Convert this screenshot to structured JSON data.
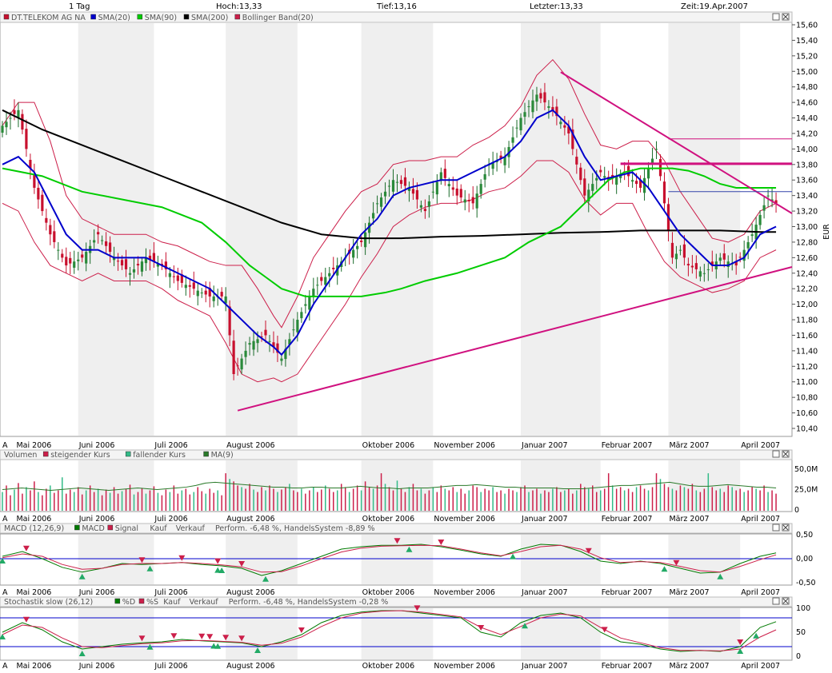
{
  "top_bar": {
    "interval": "1 Tag",
    "high": "Hoch:13,33",
    "low": "Tief:13,16",
    "last": "Letzter:13,33",
    "time": "Zeit:19.Apr.2007"
  },
  "colors": {
    "up_candle": "#c8102e",
    "sma20": "#0000cc",
    "sma90": "#00cc00",
    "sma200": "#000000",
    "bollinger": "#cc1f4a",
    "trendline": "#d0117f",
    "vol_up": "#cc1f4a",
    "vol_down": "#33bb88",
    "macd": "#007a00",
    "signal": "#cc1f4a",
    "buy_marker": "#22aa66",
    "sell_marker": "#cc1f4a",
    "band_shade": "#efefef",
    "grid": "#d8d8d8"
  },
  "chart_data": [
    {
      "type": "line",
      "title": "DT.TELEKOM AG NA",
      "legend": [
        "DT.TELEKOM AG NA",
        "SMA(20)",
        "SMA(90)",
        "SMA(200)",
        "Bollinger Band(20)"
      ],
      "ylabel": "EUR",
      "ylim": [
        10.3,
        15.7
      ],
      "yticks": [
        "15,60",
        "15,40",
        "15,20",
        "15,00",
        "14,80",
        "14,60",
        "14,40",
        "14,20",
        "14,00",
        "13,80",
        "13,60",
        "13,40",
        "13,20",
        "13,00",
        "12,80",
        "12,60",
        "12,40",
        "12,20",
        "12,00",
        "11,80",
        "11,60",
        "11,40",
        "11,20",
        "11,00",
        "10,80",
        "10,60",
        "10,40"
      ],
      "month_labels": [
        "Mai 2006",
        "Juni 2006",
        "Juli 2006",
        "August 2006",
        "Oktober 2006",
        "November 2006",
        "Januar 2007",
        "Februar 2007",
        "März 2007",
        "April 2007"
      ],
      "month_starts": [
        0.5,
        19,
        38,
        56,
        90,
        108,
        130,
        150,
        167,
        185
      ],
      "shaded_months": [
        [
          19,
          38
        ],
        [
          56,
          74
        ],
        [
          90,
          108
        ],
        [
          130,
          150
        ],
        [
          167,
          185
        ]
      ],
      "series": [
        {
          "name": "DT.TELEKOM AG NA",
          "x": [
            0,
            4,
            8,
            12,
            16,
            20,
            24,
            28,
            32,
            36,
            40,
            44,
            48,
            52,
            56,
            58,
            62,
            66,
            70,
            74,
            78,
            82,
            86,
            90,
            94,
            98,
            102,
            106,
            110,
            114,
            118,
            122,
            126,
            130,
            134,
            138,
            142,
            146,
            150,
            152,
            156,
            160,
            164,
            166,
            168,
            170,
            172,
            176,
            180,
            184,
            188,
            192,
            194
          ],
          "values": [
            14.3,
            14.5,
            13.5,
            12.9,
            12.5,
            12.6,
            12.9,
            12.6,
            12.4,
            12.6,
            12.5,
            12.3,
            12.2,
            12.1,
            12.1,
            11.1,
            11.5,
            11.6,
            11.3,
            11.8,
            12.2,
            12.4,
            12.6,
            12.8,
            13.3,
            13.6,
            13.5,
            13.2,
            13.7,
            13.4,
            13.3,
            13.8,
            13.9,
            14.4,
            14.7,
            14.5,
            14.2,
            13.4,
            13.7,
            13.6,
            13.7,
            13.5,
            14.0,
            13.3,
            12.6,
            12.7,
            12.5,
            12.4,
            12.6,
            12.5,
            12.9,
            13.4,
            13.3
          ]
        },
        {
          "name": "SMA(20)",
          "x": [
            0,
            4,
            8,
            12,
            16,
            20,
            24,
            28,
            32,
            36,
            40,
            44,
            48,
            52,
            56,
            60,
            64,
            68,
            70,
            74,
            78,
            82,
            86,
            90,
            94,
            98,
            102,
            106,
            110,
            114,
            118,
            122,
            126,
            130,
            134,
            138,
            142,
            146,
            150,
            154,
            158,
            162,
            166,
            170,
            174,
            178,
            182,
            186,
            190,
            194
          ],
          "values": [
            13.8,
            13.9,
            13.7,
            13.3,
            12.9,
            12.7,
            12.7,
            12.6,
            12.6,
            12.6,
            12.5,
            12.4,
            12.3,
            12.2,
            12.0,
            11.8,
            11.6,
            11.45,
            11.35,
            11.6,
            12.0,
            12.3,
            12.6,
            12.9,
            13.1,
            13.4,
            13.5,
            13.55,
            13.6,
            13.6,
            13.7,
            13.8,
            13.9,
            14.1,
            14.4,
            14.5,
            14.3,
            13.9,
            13.6,
            13.65,
            13.7,
            13.5,
            13.2,
            12.9,
            12.7,
            12.5,
            12.5,
            12.6,
            12.9,
            13.0
          ]
        },
        {
          "name": "SMA(90)",
          "x": [
            0,
            10,
            20,
            30,
            40,
            50,
            56,
            62,
            66,
            70,
            76,
            82,
            90,
            96,
            100,
            106,
            114,
            120,
            126,
            132,
            140,
            148,
            152,
            156,
            160,
            164,
            168,
            172,
            176,
            180,
            184,
            188,
            194
          ],
          "values": [
            13.75,
            13.65,
            13.45,
            13.35,
            13.25,
            13.05,
            12.8,
            12.5,
            12.35,
            12.2,
            12.1,
            12.1,
            12.1,
            12.15,
            12.2,
            12.3,
            12.4,
            12.5,
            12.6,
            12.8,
            13.0,
            13.4,
            13.6,
            13.7,
            13.75,
            13.75,
            13.75,
            13.72,
            13.65,
            13.55,
            13.5,
            13.5,
            13.5
          ]
        },
        {
          "name": "SMA(200)",
          "x": [
            0,
            10,
            20,
            30,
            40,
            50,
            60,
            70,
            80,
            90,
            100,
            110,
            120,
            130,
            140,
            150,
            160,
            170,
            180,
            190,
            194
          ],
          "values": [
            14.5,
            14.25,
            14.05,
            13.85,
            13.65,
            13.45,
            13.25,
            13.05,
            12.9,
            12.85,
            12.85,
            12.87,
            12.88,
            12.9,
            12.92,
            12.93,
            12.95,
            12.95,
            12.95,
            12.93,
            12.93
          ]
        }
      ],
      "annotations": [
        {
          "type": "trendline",
          "from": [
            59,
            10.63
          ],
          "to": [
            198,
            12.48
          ]
        },
        {
          "type": "trendline",
          "from": [
            140,
            14.99
          ],
          "to": [
            198,
            13.17
          ]
        },
        {
          "type": "hline",
          "x": [
            155,
            198
          ],
          "y": 13.81
        },
        {
          "type": "hline",
          "x": [
            167,
            198
          ],
          "y": 14.13
        },
        {
          "type": "hline",
          "x": [
            167,
            198
          ],
          "y": 13.45
        }
      ]
    },
    {
      "type": "bar",
      "title": "Volumen",
      "legend": [
        "Volumen",
        "steigender Kurs",
        "fallender Kurs",
        "MA(9)"
      ],
      "yticks": [
        "50,0M",
        "25,0M",
        "0"
      ],
      "ylim": [
        0,
        70
      ],
      "unit": "M",
      "values": [
        22,
        30,
        18,
        25,
        33,
        20,
        28,
        24,
        35,
        22,
        18,
        26,
        30,
        21,
        24,
        40,
        20,
        25,
        22,
        28,
        19,
        24,
        30,
        22,
        26,
        18,
        25,
        21,
        28,
        20,
        23,
        26,
        31,
        19,
        22,
        27,
        20,
        24,
        29,
        21,
        18,
        25,
        22,
        30,
        20,
        24,
        26,
        19,
        22,
        28,
        23,
        20,
        26,
        21,
        24,
        18,
        45,
        38,
        35,
        30,
        28,
        26,
        32,
        25,
        22,
        28,
        24,
        30,
        26,
        22,
        25,
        28,
        32,
        24,
        22,
        26,
        20,
        24,
        28,
        22,
        25,
        30,
        26,
        22,
        24,
        32,
        28,
        22,
        26,
        30,
        24,
        35,
        28,
        26,
        30,
        45,
        32,
        28,
        24,
        36,
        26,
        22,
        28,
        32,
        24,
        26,
        20,
        24,
        28,
        22,
        30,
        26,
        24,
        28,
        22,
        26,
        20,
        24,
        30,
        28,
        22,
        26,
        24,
        28,
        22,
        24,
        20,
        26,
        24,
        22,
        28,
        30,
        22,
        24,
        26,
        20,
        24,
        22,
        26,
        28,
        22,
        24,
        26,
        20,
        24,
        32,
        28,
        26,
        30,
        22,
        24,
        26,
        45,
        30,
        26,
        28,
        24,
        26,
        22,
        28,
        30,
        26,
        24,
        28,
        45,
        38,
        32,
        28,
        26,
        24,
        30,
        28,
        26,
        32,
        24,
        22,
        26,
        45,
        28,
        24,
        26,
        22,
        30,
        28,
        24,
        26,
        22,
        24,
        28,
        26,
        24,
        30,
        22,
        24,
        20
      ],
      "ma": [
        25,
        26,
        27,
        26,
        25,
        24,
        25,
        26,
        27,
        26,
        25,
        24,
        25,
        26,
        27,
        26,
        25,
        26,
        27,
        28,
        30,
        33,
        34,
        33,
        32,
        31,
        30,
        29,
        28,
        28,
        27,
        27,
        28,
        28,
        27,
        27,
        28,
        29,
        28,
        27,
        27,
        26,
        27,
        27,
        27,
        28,
        29,
        30,
        30,
        31,
        30,
        29,
        28,
        28,
        27,
        27,
        27,
        27,
        26,
        26,
        26,
        27,
        28,
        29,
        30,
        30,
        31,
        32,
        33,
        34,
        32,
        30,
        29,
        29,
        30,
        31,
        30,
        29,
        28,
        28,
        27
      ]
    },
    {
      "type": "line",
      "title": "MACD (12,26,9)",
      "legend": [
        "MACD (12,26,9)",
        "MACD",
        "Signal",
        "Kauf",
        "Verkauf",
        "Perform. -6,48 %, HandelsSystem -8,89 %"
      ],
      "yticks": [
        "0,50",
        "0,00",
        "-0,50"
      ],
      "ylim": [
        -0.6,
        0.6
      ],
      "x": [
        0,
        5,
        10,
        15,
        20,
        25,
        30,
        35,
        40,
        45,
        50,
        55,
        60,
        65,
        70,
        75,
        80,
        85,
        90,
        95,
        100,
        105,
        110,
        115,
        120,
        125,
        130,
        135,
        140,
        145,
        150,
        155,
        160,
        165,
        170,
        175,
        180,
        185,
        190,
        194
      ],
      "series": [
        {
          "name": "MACD",
          "values": [
            0.05,
            0.15,
            0.0,
            -0.18,
            -0.28,
            -0.2,
            -0.1,
            -0.12,
            -0.1,
            -0.08,
            -0.12,
            -0.15,
            -0.2,
            -0.35,
            -0.25,
            -0.1,
            0.05,
            0.2,
            0.25,
            0.28,
            0.28,
            0.3,
            0.25,
            0.18,
            0.1,
            0.05,
            0.2,
            0.3,
            0.28,
            0.15,
            -0.05,
            -0.1,
            -0.05,
            -0.1,
            -0.2,
            -0.3,
            -0.28,
            -0.1,
            0.05,
            0.12
          ]
        },
        {
          "name": "Signal",
          "values": [
            0.02,
            0.1,
            0.05,
            -0.12,
            -0.22,
            -0.2,
            -0.12,
            -0.1,
            -0.1,
            -0.08,
            -0.1,
            -0.13,
            -0.17,
            -0.28,
            -0.27,
            -0.15,
            0.0,
            0.14,
            0.22,
            0.26,
            0.27,
            0.28,
            0.27,
            0.2,
            0.12,
            0.06,
            0.15,
            0.25,
            0.28,
            0.2,
            0.02,
            -0.08,
            -0.06,
            -0.08,
            -0.16,
            -0.25,
            -0.28,
            -0.16,
            -0.02,
            0.08
          ]
        }
      ],
      "buy_x": [
        0,
        20,
        37,
        54,
        55,
        66,
        102,
        128,
        166,
        180
      ],
      "sell_x": [
        6,
        35,
        45,
        54,
        60,
        99,
        110,
        147,
        169
      ]
    },
    {
      "type": "line",
      "title": "Stochastik slow (26,12)",
      "legend": [
        "Stochastik slow (26,12)",
        "%D",
        "%S",
        "Kauf",
        "Verkauf",
        "Perform. -6,48 %, HandelsSystem -0,28 %"
      ],
      "yticks": [
        "100",
        "50",
        "0"
      ],
      "ylim": [
        0,
        100
      ],
      "hlines": [
        80,
        20
      ],
      "x": [
        0,
        5,
        10,
        15,
        20,
        25,
        30,
        35,
        40,
        45,
        50,
        55,
        60,
        65,
        70,
        75,
        80,
        85,
        90,
        95,
        100,
        105,
        110,
        115,
        120,
        125,
        130,
        135,
        140,
        145,
        150,
        155,
        160,
        165,
        170,
        175,
        180,
        185,
        190,
        194
      ],
      "series": [
        {
          "name": "%D",
          "values": [
            50,
            70,
            55,
            30,
            15,
            20,
            25,
            28,
            30,
            35,
            32,
            30,
            28,
            20,
            30,
            45,
            70,
            85,
            92,
            95,
            95,
            90,
            85,
            80,
            50,
            40,
            70,
            85,
            90,
            80,
            50,
            30,
            25,
            15,
            10,
            12,
            10,
            20,
            60,
            72
          ]
        },
        {
          "name": "%S",
          "values": [
            45,
            65,
            60,
            38,
            20,
            18,
            22,
            26,
            28,
            32,
            33,
            31,
            29,
            23,
            27,
            40,
            62,
            80,
            90,
            94,
            95,
            92,
            87,
            82,
            60,
            45,
            62,
            80,
            88,
            84,
            60,
            38,
            28,
            18,
            12,
            12,
            11,
            15,
            40,
            55
          ]
        }
      ],
      "buy_x": [
        0,
        20,
        37,
        53,
        54,
        64,
        131,
        185,
        189
      ],
      "sell_x": [
        6,
        35,
        43,
        50,
        52,
        56,
        60,
        75,
        104,
        120,
        151,
        185
      ]
    }
  ]
}
